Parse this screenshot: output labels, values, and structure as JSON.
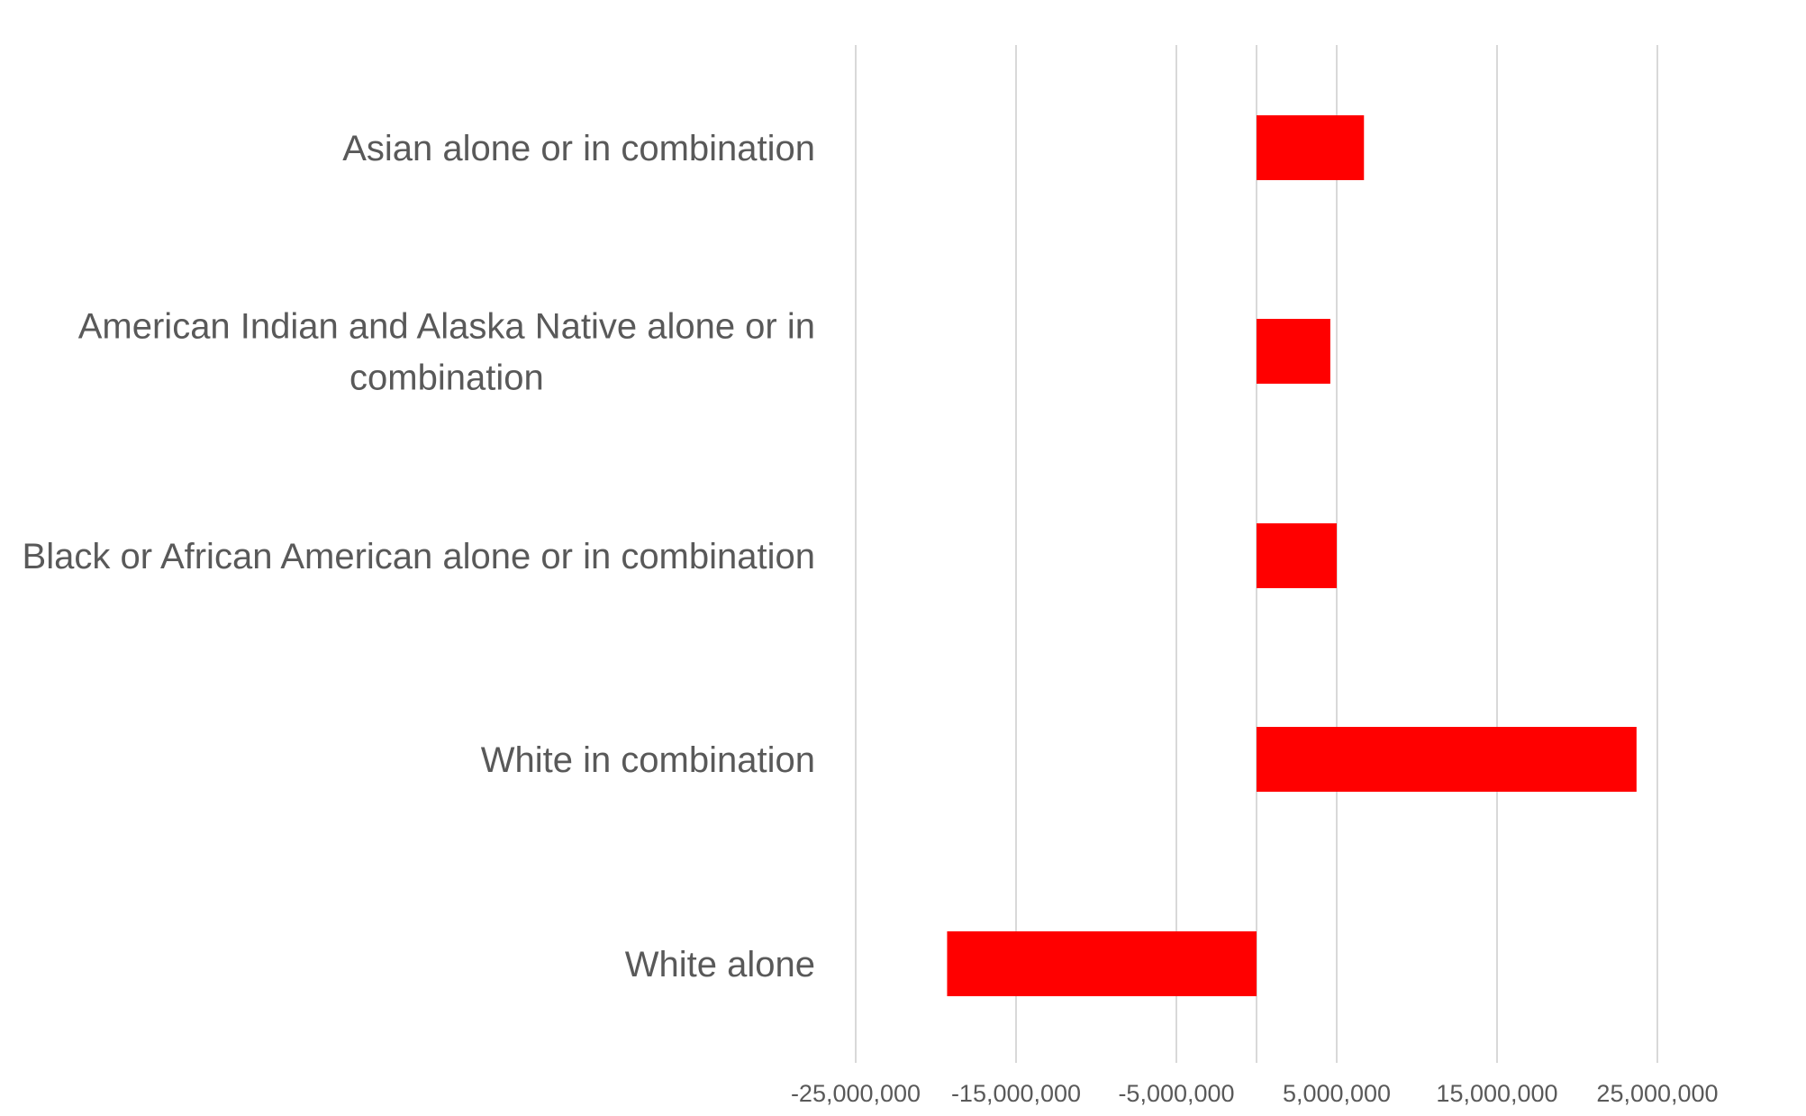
{
  "chart_data": {
    "type": "bar",
    "orientation": "horizontal",
    "categories": [
      "Asian alone or in combination",
      "American Indian and Alaska Native alone or in combination",
      "Black or African American alone or in combination",
      "White in combination",
      "White alone"
    ],
    "category_label_lines": [
      [
        "Asian alone or in combination"
      ],
      [
        "American Indian and Alaska Native alone or in",
        "combination"
      ],
      [
        "Black or African American alone or in combination"
      ],
      [
        "White in combination"
      ],
      [
        "White alone"
      ]
    ],
    "values": [
      6700000,
      4600000,
      5000000,
      23700000,
      -19300000
    ],
    "xlim": [
      -25000000,
      25000000
    ],
    "xticks": [
      -25000000,
      -15000000,
      -5000000,
      5000000,
      15000000,
      25000000
    ],
    "xtick_labels": [
      "-25,000,000",
      "-15,000,000",
      "-5,000,000",
      "5,000,000",
      "15,000,000",
      "25,000,000"
    ],
    "gridlines": "vertical",
    "legend": "none",
    "title": "",
    "xlabel": "",
    "ylabel": "",
    "bar_color": "#ff0000"
  }
}
